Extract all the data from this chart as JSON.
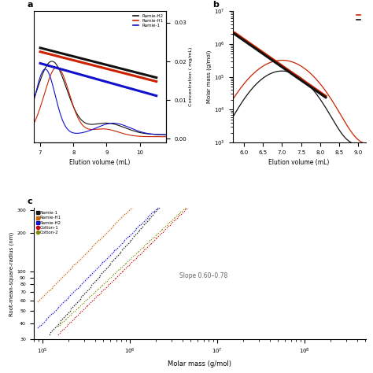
{
  "panel_a": {
    "label": "a",
    "xlabel": "Elution volume (mL)",
    "ylabel_right": "Concentration ( mg/mL)",
    "xlim": [
      6.8,
      10.8
    ],
    "ylim_conc": [
      0.0,
      0.032
    ],
    "legend": [
      "Ramie-H2",
      "Ramie-H1",
      "Ramie-1"
    ],
    "colors": [
      "#111111",
      "#cc2200",
      "#1111cc"
    ]
  },
  "panel_b": {
    "label": "b",
    "xlabel": "Elution volume (mL)",
    "ylabel": "Molar mass (g/mol)",
    "xlim": [
      5.7,
      9.2
    ],
    "ylim": [
      1000,
      10000000
    ],
    "colors_molar": [
      "#cc2200",
      "#111111"
    ],
    "colors_conc": [
      "#cc2200",
      "#111111"
    ]
  },
  "panel_c": {
    "label": "c",
    "xlabel": "Molar mass (g/mol)",
    "ylabel": "Root-mean-square-radius (nm)",
    "xlim_log": [
      4.9,
      8.7
    ],
    "ylim": [
      30,
      300
    ],
    "legend": [
      "Ramie-1",
      "Ramie-H1",
      "Ramie-H2",
      "Cotton-1",
      "Cotton-2"
    ],
    "colors": [
      "#111111",
      "#cc6600",
      "#1111cc",
      "#cc0000",
      "#888800"
    ],
    "annotation": "Slope 0.60–0.78"
  }
}
